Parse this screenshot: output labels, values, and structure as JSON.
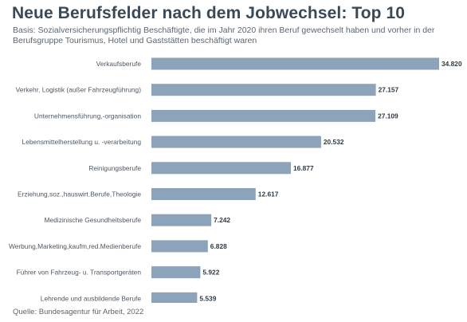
{
  "title": "Neue Berufsfelder nach dem Jobwechsel: Top 10",
  "subtitle": "Basis: Sozialversicherungspflichtig Beschäftigte, die im Jahr 2020 ihren Beruf gewechselt haben und vorher in der Berufsgruppe Tourismus, Hotel und Gaststätten beschäftigt waren",
  "source": "Quelle: Bundesagentur für Arbeit, 2022",
  "colors": {
    "bar": "#8da3b9",
    "title": "#3b4957"
  },
  "chart_data": {
    "type": "bar",
    "orientation": "horizontal",
    "categories": [
      "Verkaufsberufe",
      "Verkehr, Logistik (außer Fahrzeugführung)",
      "Unternehmensführung,-organisation",
      "Lebensmittelherstellung u. -verarbeitung",
      "Reinigungsberufe",
      "Erziehung,soz.,hauswirt.Berufe,Theologie",
      "Medizinische Gesundheitsberufe",
      "Werbung,Marketing,kaufm,red.Medienberufe",
      "Führer von Fahrzeug- u. Transportgeräten",
      "Lehrende und ausbildende Berufe"
    ],
    "values": [
      34820,
      27157,
      27109,
      20532,
      16877,
      12617,
      7242,
      6828,
      5922,
      5539
    ],
    "value_labels": [
      "34.820",
      "27.157",
      "27.109",
      "20.532",
      "16.877",
      "12.617",
      "7.242",
      "6.828",
      "5.922",
      "5.539"
    ],
    "xlim": [
      0,
      34820
    ],
    "grid": false,
    "legend": "none"
  }
}
